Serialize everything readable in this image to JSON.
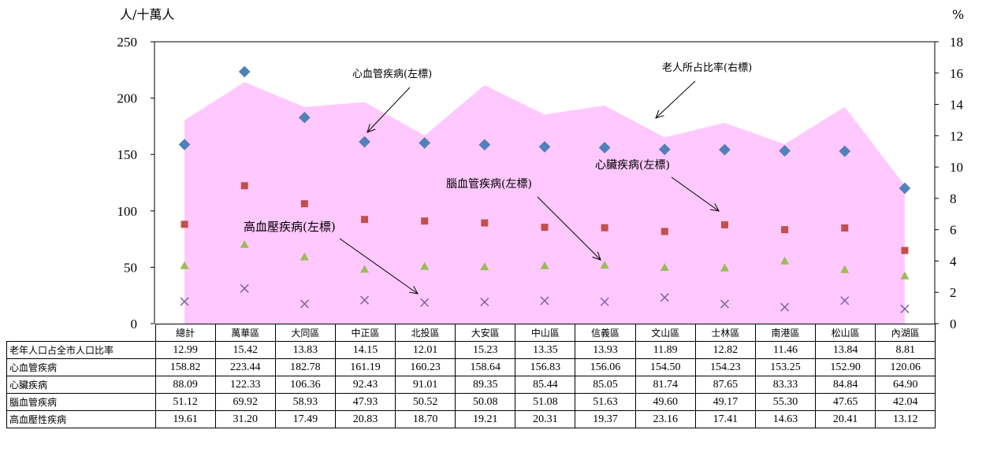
{
  "chart_data": {
    "type": "scatter",
    "left_unit": "人/十萬人",
    "right_unit": "%",
    "left_axis": {
      "min": 0,
      "max": 250,
      "ticks": [
        0,
        50,
        100,
        150,
        200,
        250
      ]
    },
    "right_axis": {
      "min": 0,
      "max": 18,
      "ticks": [
        0,
        2,
        4,
        6,
        8,
        10,
        12,
        14,
        16,
        18
      ]
    },
    "categories": [
      "總計",
      "萬華區",
      "大同區",
      "中正區",
      "北投區",
      "大安區",
      "中山區",
      "信義區",
      "文山區",
      "士林區",
      "南港區",
      "松山區",
      "內湖區"
    ],
    "series": [
      {
        "name": "老年人口占全市人口比率",
        "type": "area",
        "axis": "right",
        "color": "#FFC8FF",
        "values": [
          12.99,
          15.42,
          13.83,
          14.15,
          12.01,
          15.23,
          13.35,
          13.93,
          11.89,
          12.82,
          11.46,
          13.84,
          8.81
        ]
      },
      {
        "name": "心血管疾病",
        "type": "scatter",
        "marker": "diamond",
        "axis": "left",
        "color": "#4F81BD",
        "values": [
          158.82,
          223.44,
          182.78,
          161.19,
          160.23,
          158.64,
          156.83,
          156.06,
          154.5,
          154.23,
          153.25,
          152.9,
          120.06
        ]
      },
      {
        "name": "心臟疾病",
        "type": "scatter",
        "marker": "square",
        "axis": "left",
        "color": "#C0504D",
        "values": [
          88.09,
          122.33,
          106.36,
          92.43,
          91.01,
          89.35,
          85.44,
          85.05,
          81.74,
          87.65,
          83.33,
          84.84,
          64.9
        ]
      },
      {
        "name": "腦血管疾病",
        "type": "scatter",
        "marker": "triangle",
        "axis": "left",
        "color": "#9BBB59",
        "values": [
          51.12,
          69.92,
          58.93,
          47.93,
          50.52,
          50.08,
          51.08,
          51.63,
          49.6,
          49.17,
          55.3,
          47.65,
          42.04
        ]
      },
      {
        "name": "高血壓性疾病",
        "type": "scatter",
        "marker": "x",
        "axis": "left",
        "color": "#8064A2",
        "values": [
          19.61,
          31.2,
          17.49,
          20.83,
          18.7,
          19.21,
          20.31,
          19.37,
          23.16,
          17.41,
          14.63,
          20.41,
          13.12
        ]
      }
    ],
    "table_values": [
      [
        "12.99",
        "15.42",
        "13.83",
        "14.15",
        "12.01",
        "15.23",
        "13.35",
        "13.93",
        "11.89",
        "12.82",
        "11.46",
        "13.84",
        "8.81"
      ],
      [
        "158.82",
        "223.44",
        "182.78",
        "161.19",
        "160.23",
        "158.64",
        "156.83",
        "156.06",
        "154.50",
        "154.23",
        "153.25",
        "152.90",
        "120.06"
      ],
      [
        "88.09",
        "122.33",
        "106.36",
        "92.43",
        "91.01",
        "89.35",
        "85.44",
        "85.05",
        "81.74",
        "87.65",
        "83.33",
        "84.84",
        "64.90"
      ],
      [
        "51.12",
        "69.92",
        "58.93",
        "47.93",
        "50.52",
        "50.08",
        "51.08",
        "51.63",
        "49.60",
        "49.17",
        "55.30",
        "47.65",
        "42.04"
      ],
      [
        "19.61",
        "31.20",
        "17.49",
        "20.83",
        "18.70",
        "19.21",
        "20.31",
        "19.37",
        "23.16",
        "17.41",
        "14.63",
        "20.41",
        "13.12"
      ]
    ],
    "annotations": [
      {
        "text": "心血管疾病(左標)"
      },
      {
        "text": "老人所占比率(右標)"
      },
      {
        "text": "心臟疾病(左標)"
      },
      {
        "text": "腦血管疾病(左標)"
      },
      {
        "text": "高血壓疾病(左標)"
      }
    ],
    "grid": false,
    "legend": "data-table"
  }
}
